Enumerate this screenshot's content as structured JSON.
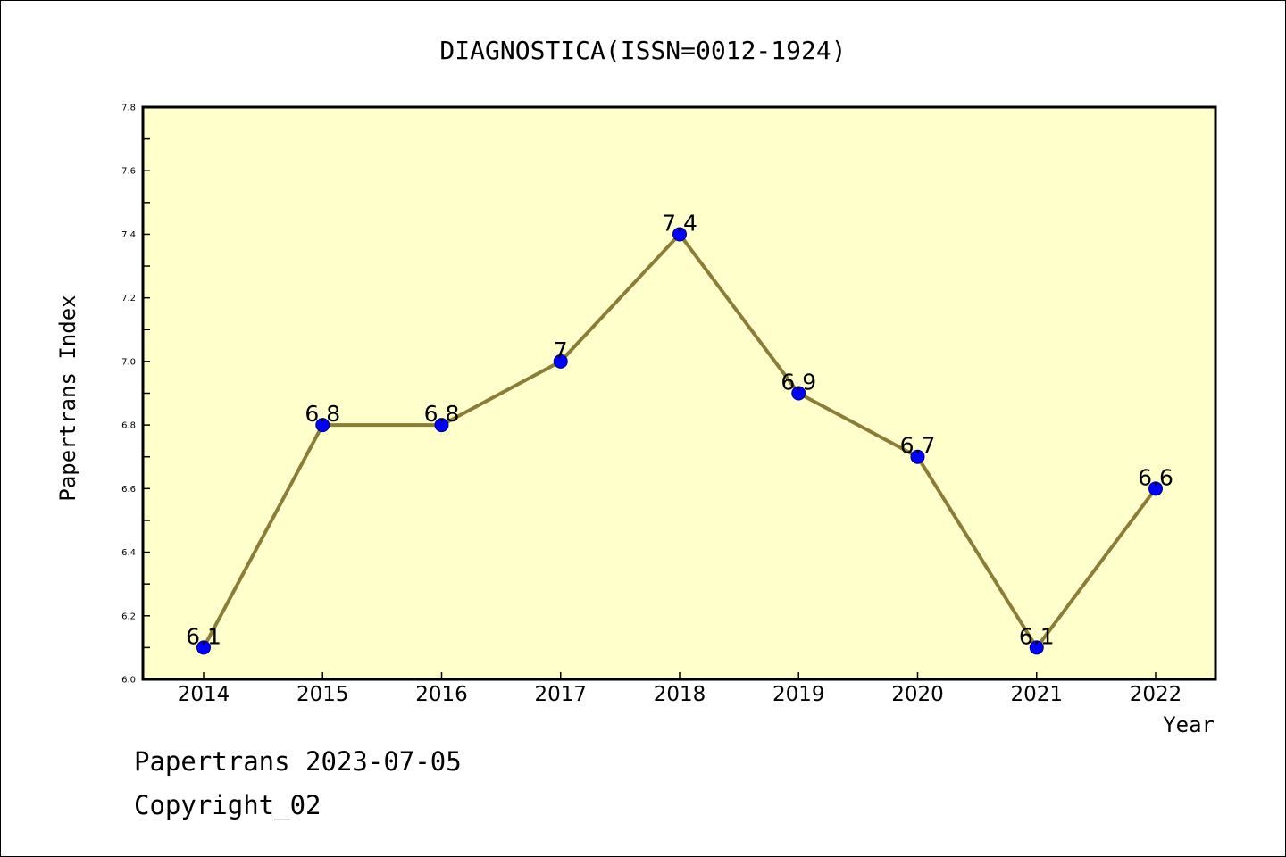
{
  "footer": {
    "line1": "Papertrans 2023-07-05",
    "line2": "Copyright_02"
  },
  "colors": {
    "plot_background": "#ffffcc",
    "line": "#8b7d36",
    "marker": "#0000ff",
    "marker_edge": "#000080"
  },
  "chart_data": {
    "type": "line",
    "title": "DIAGNOSTICA(ISSN=0012-1924)",
    "xlabel": "Year",
    "ylabel": "Papertrans Index",
    "categories": [
      "2014",
      "2015",
      "2016",
      "2017",
      "2018",
      "2019",
      "2020",
      "2021",
      "2022"
    ],
    "series": [
      {
        "values": [
          6.1,
          6.8,
          6.8,
          7.0,
          7.4,
          6.9,
          6.7,
          6.1,
          6.6
        ],
        "labels": [
          "6.1",
          "6.8",
          "6.8",
          "7",
          "7.4",
          "6.9",
          "6.7",
          "6.1",
          "6.6"
        ]
      }
    ],
    "ylim": [
      6.0,
      7.8
    ],
    "yticks": [
      "6.0",
      "6.2",
      "6.4",
      "6.6",
      "6.8",
      "7.0",
      "7.2",
      "7.4",
      "7.6",
      "7.8"
    ],
    "grid": false,
    "legend": "none"
  }
}
